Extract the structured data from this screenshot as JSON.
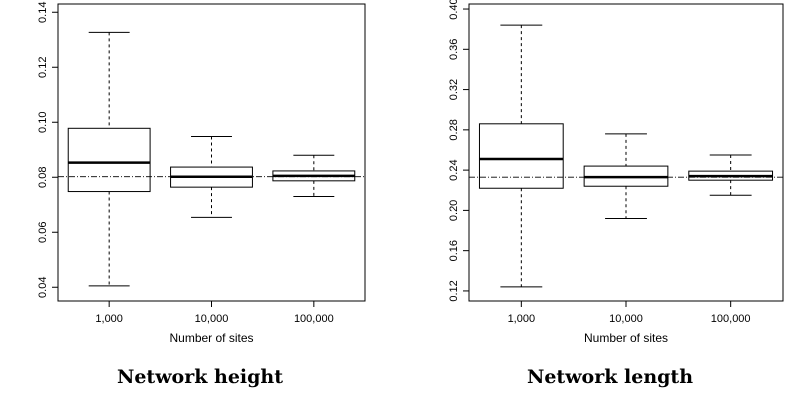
{
  "chart_data": [
    {
      "type": "boxplot",
      "caption": "Network height",
      "xlabel": "Number of sites",
      "ylabel": "",
      "categories": [
        "1,000",
        "10,000",
        "100,000"
      ],
      "ylim": [
        0.035,
        0.143
      ],
      "yticks": [
        0.04,
        0.06,
        0.08,
        0.1,
        0.12,
        0.14
      ],
      "ytick_labels": [
        "0.04",
        "0.06",
        "0.08",
        "0.10",
        "0.12",
        "0.14"
      ],
      "reference_line": 0.0802,
      "boxes": [
        {
          "whisker_low": 0.0405,
          "q1": 0.0748,
          "median": 0.0853,
          "q3": 0.0978,
          "whisker_high": 0.1327
        },
        {
          "whisker_low": 0.0654,
          "q1": 0.0764,
          "median": 0.0802,
          "q3": 0.0837,
          "whisker_high": 0.0948
        },
        {
          "whisker_low": 0.073,
          "q1": 0.0787,
          "median": 0.0805,
          "q3": 0.0823,
          "whisker_high": 0.088
        }
      ],
      "grid": false
    },
    {
      "type": "boxplot",
      "caption": "Network length",
      "xlabel": "Number of sites",
      "ylabel": "",
      "categories": [
        "1,000",
        "10,000",
        "100,000"
      ],
      "ylim": [
        0.11,
        0.405
      ],
      "yticks": [
        0.12,
        0.16,
        0.2,
        0.24,
        0.28,
        0.32,
        0.36,
        0.4
      ],
      "ytick_labels": [
        "0.12",
        "0.16",
        "0.20",
        "0.24",
        "0.28",
        "0.32",
        "0.36",
        "0.40"
      ],
      "reference_line": 0.233,
      "boxes": [
        {
          "whisker_low": 0.124,
          "q1": 0.222,
          "median": 0.251,
          "q3": 0.286,
          "whisker_high": 0.384
        },
        {
          "whisker_low": 0.192,
          "q1": 0.224,
          "median": 0.233,
          "q3": 0.244,
          "whisker_high": 0.276
        },
        {
          "whisker_low": 0.215,
          "q1": 0.23,
          "median": 0.234,
          "q3": 0.239,
          "whisker_high": 0.255
        }
      ],
      "grid": false
    }
  ]
}
